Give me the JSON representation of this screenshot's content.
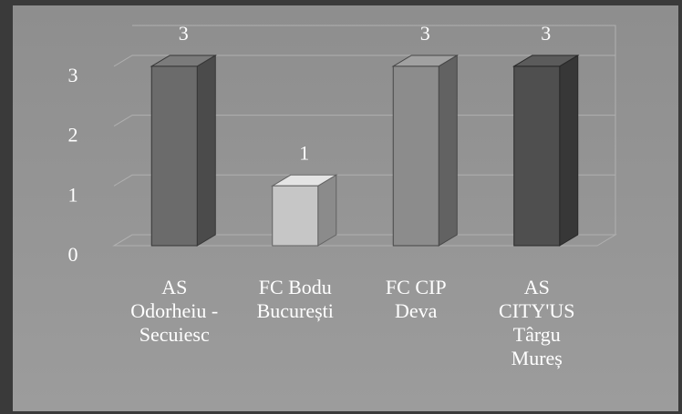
{
  "chart_data": {
    "type": "bar3d",
    "categories": [
      "AS\nOdorheiu -\nSecuiesc",
      "FC Bodu\nBucurești",
      "FC CIP\nDeva",
      "AS\nCITY'US\nTârgu\nMureș"
    ],
    "values": [
      3,
      1,
      3,
      3
    ],
    "colors": [
      "#6b6b6b",
      "#c6c6c6",
      "#8c8c8c",
      "#4f4f4f"
    ],
    "ylim": [
      0,
      3.5
    ],
    "yticks": [
      0,
      1,
      2,
      3
    ],
    "grid": true
  }
}
